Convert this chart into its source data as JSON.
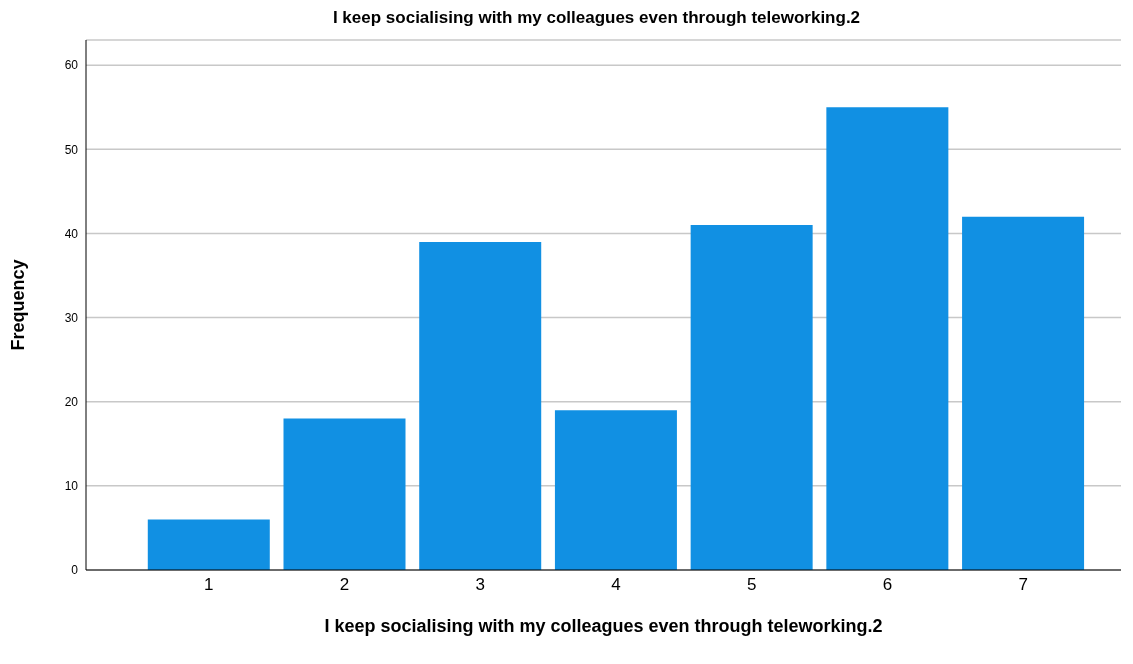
{
  "chart_data": {
    "type": "bar",
    "title": "I keep socialising with my colleagues even through teleworking.2",
    "xlabel": "I keep socialising with my colleagues even through teleworking.2",
    "ylabel": "Frequency",
    "categories": [
      "1",
      "2",
      "3",
      "4",
      "5",
      "6",
      "7"
    ],
    "values": [
      6,
      18,
      39,
      19,
      41,
      55,
      42
    ],
    "color": "#1190e3",
    "ylim": [
      0,
      63
    ],
    "yticks": [
      0,
      10,
      20,
      30,
      40,
      50,
      60
    ],
    "grid": "y"
  }
}
